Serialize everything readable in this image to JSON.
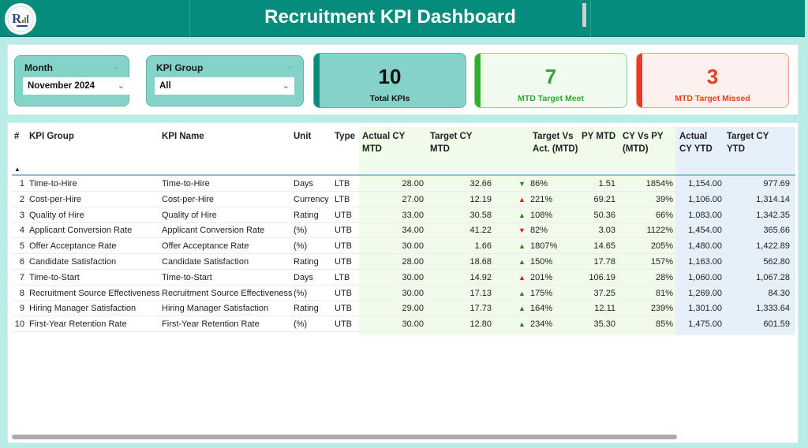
{
  "header": {
    "title": "Recruitment KPI Dashboard",
    "logo_icon": "company-logo-icon"
  },
  "filters": {
    "month": {
      "label": "Month",
      "value": "November 2024"
    },
    "kpi_group": {
      "label": "KPI Group",
      "value": "All"
    }
  },
  "cards": {
    "total": {
      "value": "10",
      "caption": "Total KPIs"
    },
    "meet": {
      "value": "7",
      "caption": "MTD Target Meet"
    },
    "missed": {
      "value": "3",
      "caption": "MTD Target Missed"
    }
  },
  "colors": {
    "header_bg": "#068c7c",
    "meet_green": "#34a434",
    "missed_red": "#e2421f",
    "up_green": "#1e8a1e",
    "alert_red": "#e01b1b"
  },
  "table": {
    "columns": {
      "num": "#",
      "group": "KPI Group",
      "name": "KPI Name",
      "unit": "Unit",
      "type": "Type",
      "actual_mtd": "Actual CY MTD",
      "target_mtd": "Target CY MTD",
      "tva_mtd": "Target Vs Act. (MTD)",
      "py_mtd": "PY MTD",
      "cy_vs_py": "CY Vs PY (MTD)",
      "actual_ytd": "Actual CY YTD",
      "target_ytd": "Target CY YTD"
    },
    "sort_indicator": "▲",
    "rows": [
      {
        "n": "1",
        "group": "Time-to-Hire",
        "name": "Time-to-Hire",
        "unit": "Days",
        "type": "LTB",
        "actual": "28.00",
        "target": "32.66",
        "arrow": "▼",
        "arrow_color": "green",
        "tva": "86%",
        "py": "1.51",
        "cyvpy": "1854%",
        "aytd": "1,154.00",
        "tytd": "977.69"
      },
      {
        "n": "2",
        "group": "Cost-per-Hire",
        "name": "Cost-per-Hire",
        "unit": "Currency",
        "type": "LTB",
        "actual": "27.00",
        "target": "12.19",
        "arrow": "▲",
        "arrow_color": "red",
        "tva": "221%",
        "py": "69.21",
        "cyvpy": "39%",
        "aytd": "1,106.00",
        "tytd": "1,314.14"
      },
      {
        "n": "3",
        "group": "Quality of Hire",
        "name": "Quality of Hire",
        "unit": "Rating",
        "type": "UTB",
        "actual": "33.00",
        "target": "30.58",
        "arrow": "▲",
        "arrow_color": "green",
        "tva": "108%",
        "py": "50.36",
        "cyvpy": "66%",
        "aytd": "1,083.00",
        "tytd": "1,342.35"
      },
      {
        "n": "4",
        "group": "Applicant Conversion Rate",
        "name": "Applicant Conversion Rate",
        "unit": "(%)",
        "type": "UTB",
        "actual": "34.00",
        "target": "41.22",
        "arrow": "▼",
        "arrow_color": "red",
        "tva": "82%",
        "py": "3.03",
        "cyvpy": "1122%",
        "aytd": "1,454.00",
        "tytd": "365.66"
      },
      {
        "n": "5",
        "group": "Offer Acceptance Rate",
        "name": "Offer Acceptance Rate",
        "unit": "(%)",
        "type": "UTB",
        "actual": "30.00",
        "target": "1.66",
        "arrow": "▲",
        "arrow_color": "green",
        "tva": "1807%",
        "py": "14.65",
        "cyvpy": "205%",
        "aytd": "1,480.00",
        "tytd": "1,422.89"
      },
      {
        "n": "6",
        "group": "Candidate Satisfaction",
        "name": "Candidate Satisfaction",
        "unit": "Rating",
        "type": "UTB",
        "actual": "28.00",
        "target": "18.68",
        "arrow": "▲",
        "arrow_color": "green",
        "tva": "150%",
        "py": "17.78",
        "cyvpy": "157%",
        "aytd": "1,163.00",
        "tytd": "562.80"
      },
      {
        "n": "7",
        "group": "Time-to-Start",
        "name": "Time-to-Start",
        "unit": "Days",
        "type": "LTB",
        "actual": "30.00",
        "target": "14.92",
        "arrow": "▲",
        "arrow_color": "red",
        "tva": "201%",
        "py": "106.19",
        "cyvpy": "28%",
        "aytd": "1,060.00",
        "tytd": "1,067.28"
      },
      {
        "n": "8",
        "group": "Recruitment Source Effectiveness",
        "name": "Recruitment Source Effectiveness",
        "unit": "(%)",
        "type": "UTB",
        "actual": "30.00",
        "target": "17.13",
        "arrow": "▲",
        "arrow_color": "green",
        "tva": "175%",
        "py": "37.25",
        "cyvpy": "81%",
        "aytd": "1,269.00",
        "tytd": "84.30"
      },
      {
        "n": "9",
        "group": "Hiring Manager Satisfaction",
        "name": "Hiring Manager Satisfaction",
        "unit": "Rating",
        "type": "UTB",
        "actual": "29.00",
        "target": "17.73",
        "arrow": "▲",
        "arrow_color": "green",
        "tva": "164%",
        "py": "12.11",
        "cyvpy": "239%",
        "aytd": "1,301.00",
        "tytd": "1,333.64"
      },
      {
        "n": "10",
        "group": "First-Year Retention Rate",
        "name": "First-Year Retention Rate",
        "unit": "(%)",
        "type": "UTB",
        "actual": "30.00",
        "target": "12.80",
        "arrow": "▲",
        "arrow_color": "green",
        "tva": "234%",
        "py": "35.30",
        "cyvpy": "85%",
        "aytd": "1,475.00",
        "tytd": "601.59"
      }
    ]
  }
}
